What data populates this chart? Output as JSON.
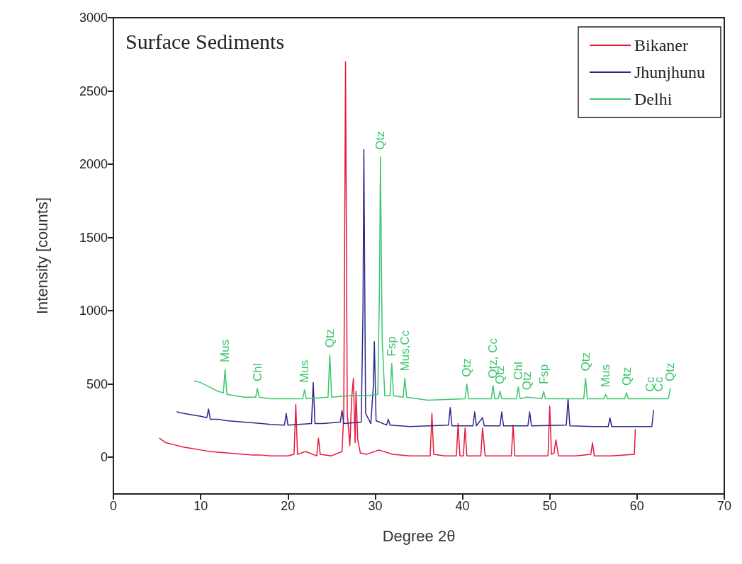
{
  "chart_data": {
    "type": "line",
    "title": "Surface Sediments",
    "xlabel": "Degree 2θ",
    "ylabel": "Intensity [counts]",
    "xlim": [
      0,
      70
    ],
    "xticks": [
      0,
      10,
      20,
      30,
      40,
      50,
      60,
      70
    ],
    "ylim": [
      -250,
      3000
    ],
    "yticks": [
      0,
      500,
      1000,
      1500,
      2000,
      2500,
      3000
    ],
    "grid": false,
    "legend": "top right",
    "marker": "none",
    "line_style": "solid",
    "series": [
      {
        "name": "Bikaner",
        "color": "#e8173c",
        "x": [
          5.3,
          6,
          7,
          8,
          9,
          10,
          11,
          12,
          13,
          14,
          15,
          16,
          17,
          18,
          19,
          20,
          20.7,
          20.9,
          21.1,
          22,
          23.3,
          23.5,
          23.7,
          25,
          26.2,
          26.4,
          26.6,
          26.8,
          27.1,
          27.3,
          27.5,
          27.7,
          27.8,
          28.0,
          28.3,
          29,
          30.4,
          32,
          34,
          36.3,
          36.5,
          36.7,
          38,
          39.3,
          39.5,
          39.7,
          40.1,
          40.3,
          40.5,
          42.1,
          42.3,
          42.6,
          44,
          45.6,
          45.8,
          46,
          48,
          49.8,
          50.0,
          50.2,
          50.5,
          50.7,
          51,
          53,
          54.7,
          54.9,
          55.1,
          57,
          59.7,
          59.8
        ],
        "values": [
          130,
          100,
          85,
          70,
          60,
          50,
          40,
          35,
          30,
          25,
          20,
          15,
          15,
          10,
          10,
          10,
          20,
          360,
          20,
          40,
          10,
          130,
          20,
          10,
          40,
          300,
          2700,
          300,
          80,
          400,
          540,
          100,
          450,
          120,
          30,
          20,
          50,
          20,
          10,
          10,
          300,
          20,
          10,
          10,
          230,
          10,
          10,
          200,
          10,
          10,
          200,
          10,
          10,
          10,
          220,
          10,
          10,
          10,
          350,
          20,
          30,
          120,
          10,
          10,
          20,
          100,
          10,
          10,
          20,
          190
        ]
      },
      {
        "name": "Jhunjhunu",
        "color": "#2a2a8c",
        "x": [
          7.3,
          8,
          9,
          10,
          10.7,
          10.9,
          11.1,
          12,
          13,
          14,
          15,
          16,
          17,
          18,
          19.6,
          19.8,
          20,
          22.7,
          22.9,
          23.1,
          24,
          26,
          26.2,
          26.4,
          28.4,
          28.6,
          28.7,
          28.9,
          29.5,
          29.8,
          29.9,
          30.1,
          31.3,
          31.5,
          31.7,
          34,
          38.4,
          38.6,
          38.8,
          41.2,
          41.4,
          41.6,
          42.3,
          42.5,
          44.3,
          44.5,
          44.7,
          47.5,
          47.7,
          47.9,
          51.9,
          52.1,
          52.3,
          55,
          56.7,
          56.9,
          57.1,
          61.7,
          61.9
        ],
        "values": [
          310,
          300,
          290,
          280,
          270,
          330,
          260,
          260,
          250,
          245,
          240,
          235,
          230,
          225,
          220,
          300,
          220,
          230,
          510,
          230,
          230,
          240,
          320,
          230,
          240,
          1000,
          2100,
          300,
          230,
          500,
          790,
          250,
          220,
          260,
          220,
          210,
          220,
          340,
          215,
          215,
          310,
          215,
          270,
          215,
          215,
          310,
          215,
          215,
          310,
          215,
          220,
          400,
          215,
          210,
          210,
          270,
          210,
          210,
          320
        ]
      },
      {
        "name": "Delhi",
        "color": "#3cc66e",
        "x": [
          9.3,
          10,
          11,
          12,
          12.6,
          12.8,
          13,
          14,
          15,
          16.3,
          16.5,
          16.7,
          18,
          20,
          21.7,
          21.9,
          22.1,
          24.6,
          24.8,
          25,
          27,
          29,
          30.3,
          30.5,
          30.6,
          30.8,
          31.1,
          31.7,
          31.9,
          32.1,
          33.2,
          33.4,
          33.6,
          36,
          40.3,
          40.5,
          40.7,
          43.3,
          43.5,
          43.7,
          44.1,
          44.3,
          44.5,
          46.2,
          46.4,
          46.6,
          47.4,
          49.1,
          49.3,
          49.5,
          53.9,
          54.1,
          54.3,
          56.2,
          56.4,
          56.6,
          58.6,
          58.8,
          59,
          62,
          63.6,
          63.8
        ],
        "values": [
          520,
          510,
          480,
          450,
          440,
          600,
          430,
          420,
          410,
          410,
          470,
          410,
          400,
          400,
          400,
          460,
          400,
          410,
          700,
          410,
          420,
          420,
          430,
          1200,
          2050,
          800,
          420,
          420,
          640,
          420,
          410,
          540,
          410,
          390,
          400,
          500,
          400,
          400,
          490,
          400,
          400,
          450,
          400,
          400,
          480,
          400,
          410,
          400,
          450,
          400,
          400,
          540,
          400,
          400,
          430,
          400,
          400,
          440,
          400,
          400,
          400,
          470
        ]
      }
    ],
    "annotations": [
      {
        "text": "Mus",
        "x": 12.8,
        "y": 600
      },
      {
        "text": "Chl",
        "x": 16.5,
        "y": 470
      },
      {
        "text": "Mus",
        "x": 21.9,
        "y": 460
      },
      {
        "text": "Qtz",
        "x": 24.8,
        "y": 700
      },
      {
        "text": "Qtz",
        "x": 30.6,
        "y": 2050
      },
      {
        "text": "Fsp",
        "x": 31.9,
        "y": 640
      },
      {
        "text": "Mus,Cc",
        "x": 33.4,
        "y": 540
      },
      {
        "text": "Qtz",
        "x": 40.5,
        "y": 500
      },
      {
        "text": "Qtz, Cc",
        "x": 43.5,
        "y": 490
      },
      {
        "text": "Qtz",
        "x": 44.3,
        "y": 450
      },
      {
        "text": "Chl",
        "x": 46.4,
        "y": 480
      },
      {
        "text": "Qtz",
        "x": 47.4,
        "y": 410
      },
      {
        "text": "Fsp",
        "x": 49.3,
        "y": 450
      },
      {
        "text": "Qtz",
        "x": 54.1,
        "y": 540
      },
      {
        "text": "Mus",
        "x": 56.4,
        "y": 430
      },
      {
        "text": "Qtz",
        "x": 58.8,
        "y": 440
      },
      {
        "text": "Cc",
        "x": 61.5,
        "y": 400
      },
      {
        "text": "Cc",
        "x": 62.5,
        "y": 400
      },
      {
        "text": "Qtz",
        "x": 63.8,
        "y": 470
      }
    ]
  }
}
